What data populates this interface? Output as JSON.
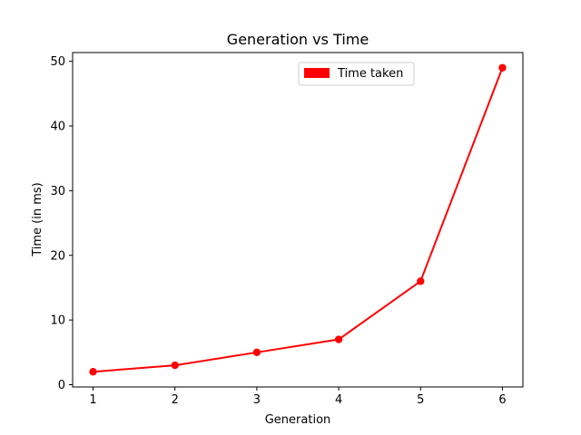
{
  "chart_data": {
    "type": "line",
    "title": "Generation vs Time",
    "xlabel": "Generation",
    "ylabel": "Time (in ms)",
    "x": [
      1,
      2,
      3,
      4,
      5,
      6
    ],
    "xlim": [
      0.75,
      6.25
    ],
    "ylim": [
      -0.35,
      51.35
    ],
    "x_ticks": [
      1,
      2,
      3,
      4,
      5,
      6
    ],
    "y_ticks": [
      0,
      10,
      20,
      30,
      40,
      50
    ],
    "grid": false,
    "legend_position": "top-center",
    "series": [
      {
        "name": "Time taken",
        "values": [
          2,
          3,
          5,
          7,
          16,
          49
        ],
        "color": "#ff0000",
        "marker": "circle"
      }
    ]
  }
}
